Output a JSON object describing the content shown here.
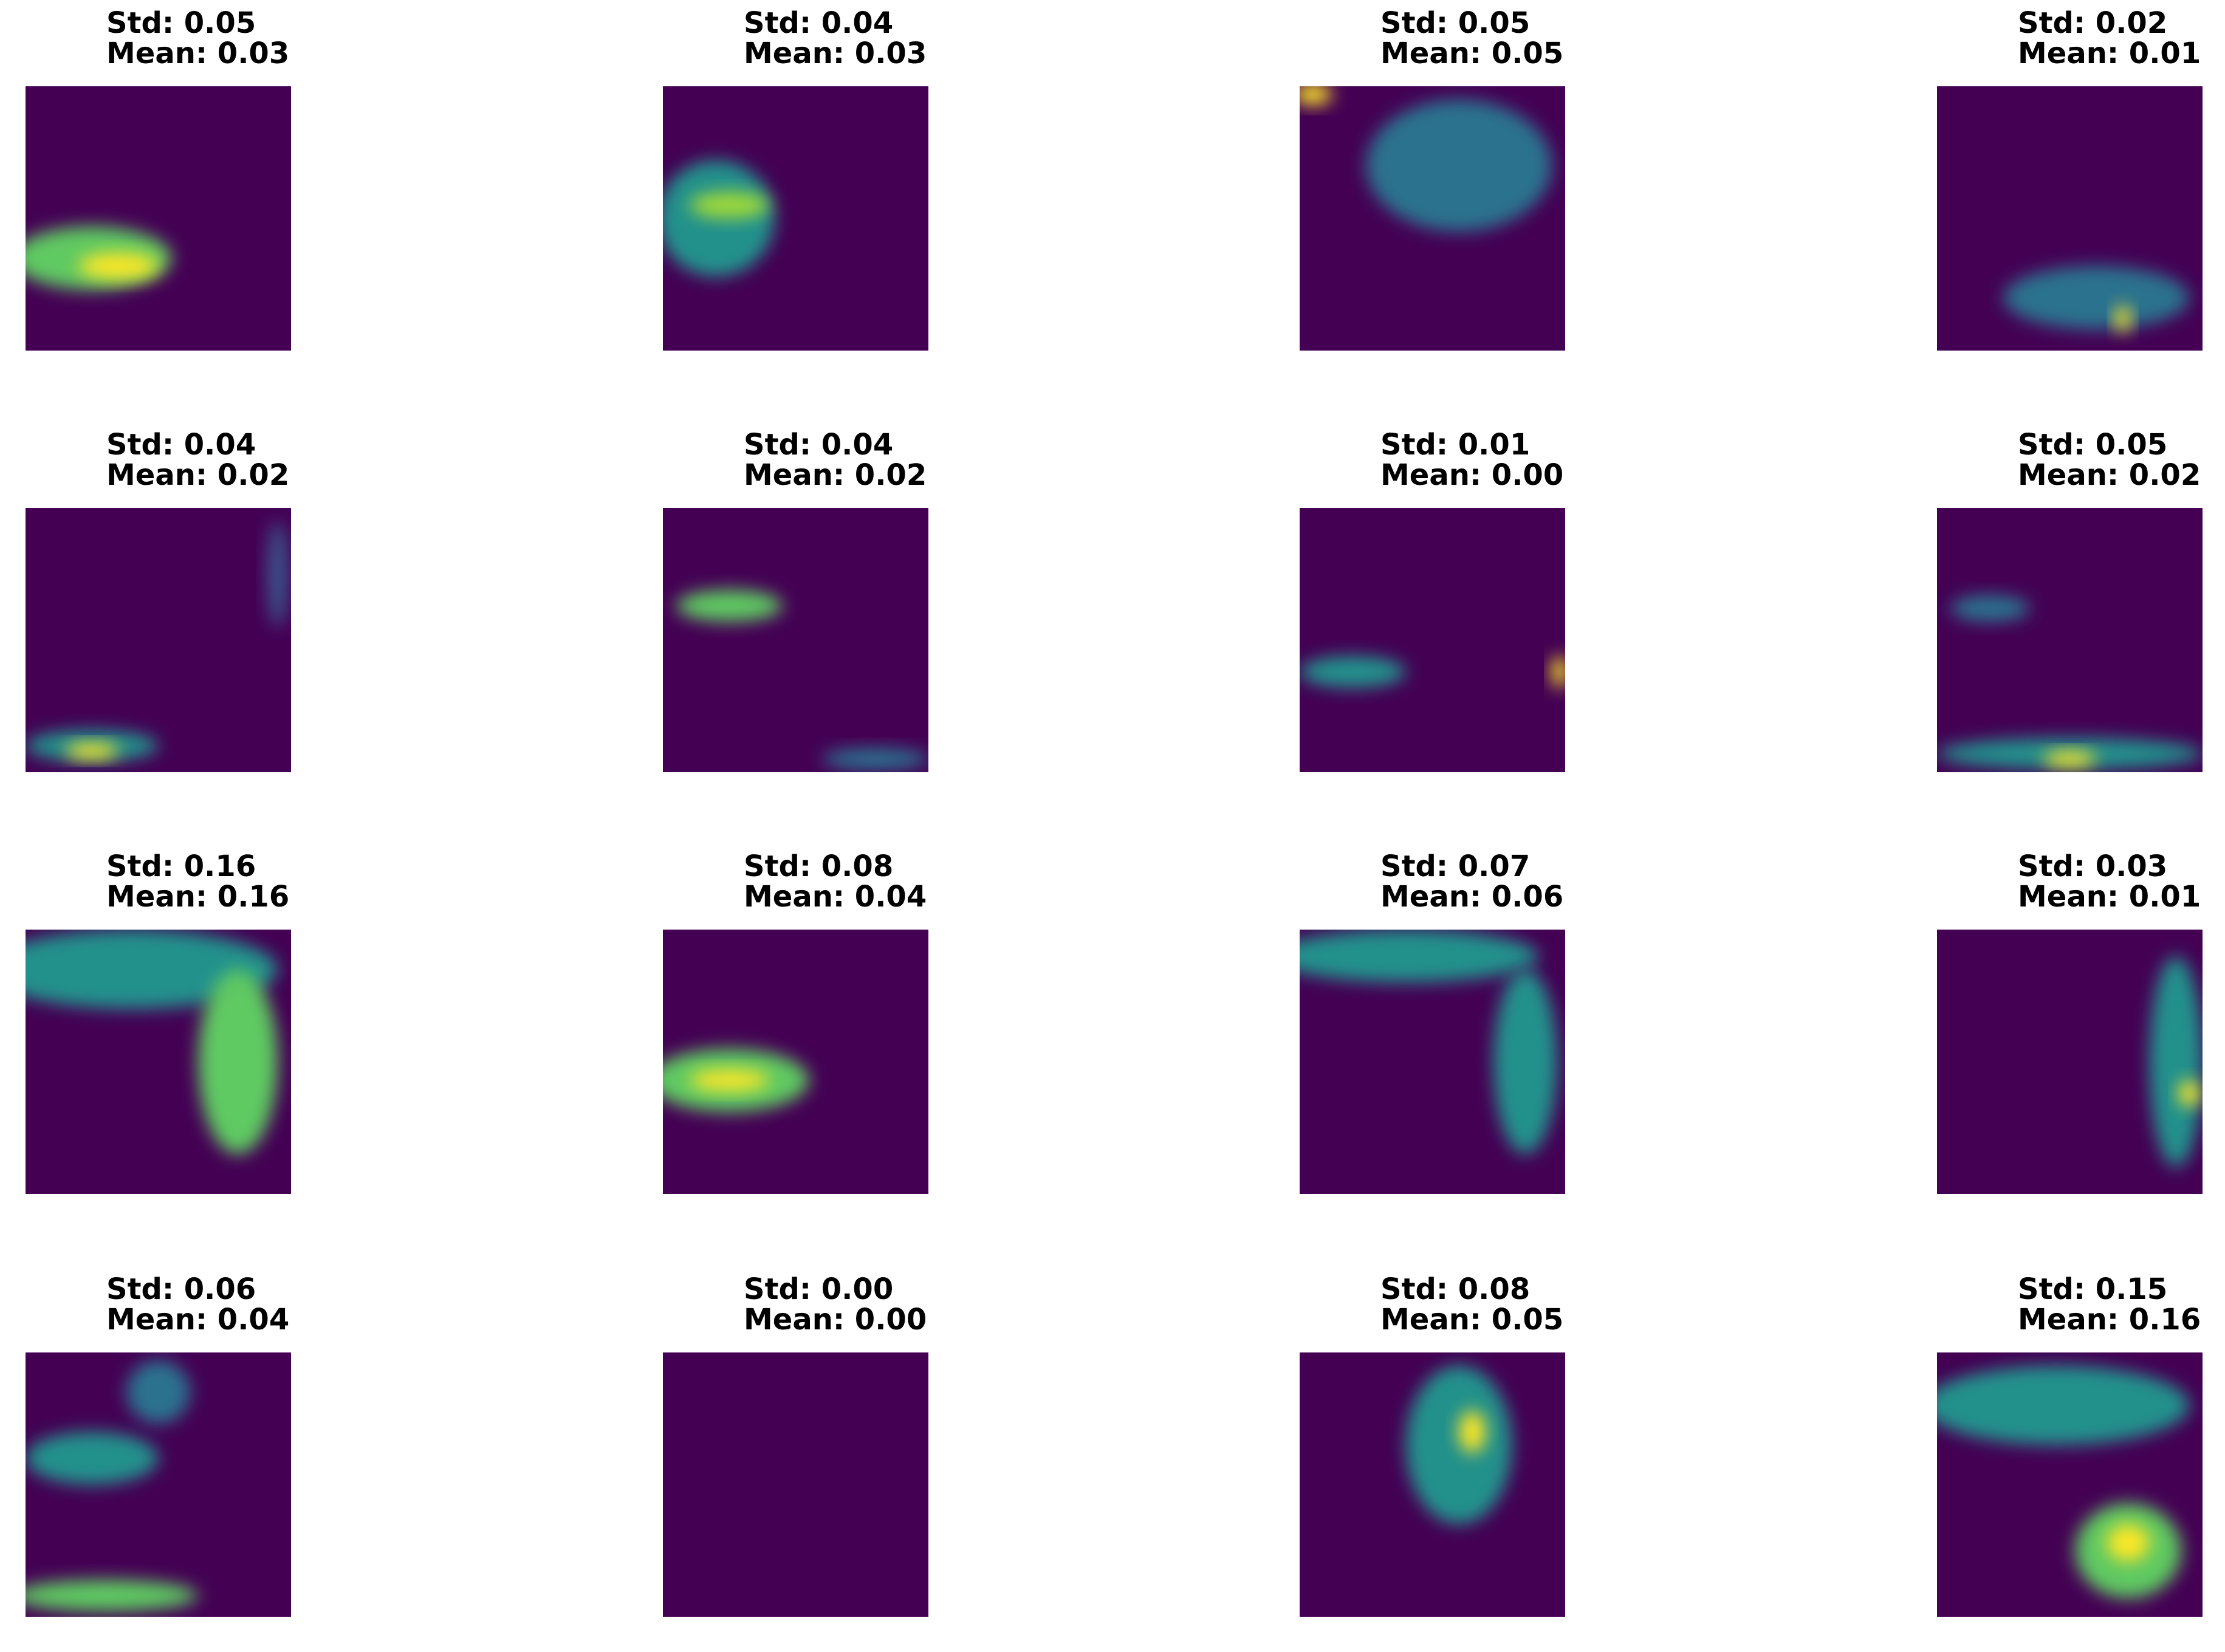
{
  "panels": [
    {
      "std": "Std: 0.05",
      "mean": "Mean: 0.03"
    },
    {
      "std": "Std: 0.04",
      "mean": "Mean: 0.03"
    },
    {
      "std": "Std: 0.05",
      "mean": "Mean: 0.05"
    },
    {
      "std": "Std: 0.02",
      "mean": "Mean: 0.01"
    },
    {
      "std": "Std: 0.04",
      "mean": "Mean: 0.02"
    },
    {
      "std": "Std: 0.04",
      "mean": "Mean: 0.02"
    },
    {
      "std": "Std: 0.01",
      "mean": "Mean: 0.00"
    },
    {
      "std": "Std: 0.05",
      "mean": "Mean: 0.02"
    },
    {
      "std": "Std: 0.16",
      "mean": "Mean: 0.16"
    },
    {
      "std": "Std: 0.08",
      "mean": "Mean: 0.04"
    },
    {
      "std": "Std: 0.07",
      "mean": "Mean: 0.06"
    },
    {
      "std": "Std: 0.03",
      "mean": "Mean: 0.01"
    },
    {
      "std": "Std: 0.06",
      "mean": "Mean: 0.04"
    },
    {
      "std": "Std: 0.00",
      "mean": "Mean: 0.00"
    },
    {
      "std": "Std: 0.08",
      "mean": "Mean: 0.05"
    },
    {
      "std": "Std: 0.15",
      "mean": "Mean: 0.16"
    }
  ]
}
